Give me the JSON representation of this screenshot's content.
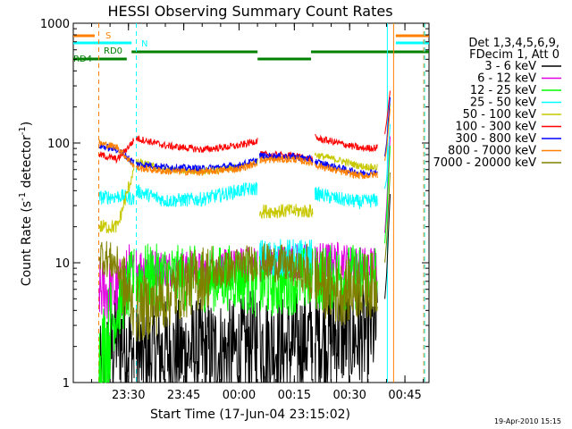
{
  "chart_data": {
    "type": "line",
    "title": "HESSI Observing Summary Count Rates",
    "xlabel": "Start Time (17-Jun-04 23:15:02)",
    "ylabel_main": "Count Rate (s",
    "ylabel_sup": "-1",
    "ylabel_mid": " detector",
    "ylabel_end": ")",
    "yscale": "log",
    "ylim": [
      1,
      1000
    ],
    "x_unit": "minutes after 2004-06-17 23:15:02",
    "xlim": [
      0,
      96.5
    ],
    "xtick_minutes": [
      14.97,
      29.97,
      44.97,
      59.97,
      74.97,
      89.97
    ],
    "xtick_labels": [
      "23:30",
      "23:45",
      "00:00",
      "00:15",
      "00:30",
      "00:45"
    ],
    "ytick_values": [
      1,
      10,
      100,
      1000
    ],
    "ytick_labels": [
      "1",
      "10",
      "100",
      "1000"
    ],
    "legend_header": [
      "Det 1,3,4,5,6,9,",
      "FDecim 1, Att 0"
    ],
    "timestamp": "19-Apr-2010 15:15",
    "segments": [
      [
        7,
        16.5
      ],
      [
        17,
        50
      ],
      [
        50.5,
        65
      ],
      [
        65.5,
        82.5
      ]
    ],
    "series": [
      {
        "name": "3 - 6 keV",
        "color": "#000000",
        "values": [
          [
            7,
            1.0
          ],
          [
            12,
            2.5
          ],
          [
            17,
            1.6
          ],
          [
            25,
            1.8
          ],
          [
            35,
            1.8
          ],
          [
            45,
            1.8
          ],
          [
            50,
            2.3
          ],
          [
            57,
            1.9
          ],
          [
            65,
            2.4
          ],
          [
            72,
            2.5
          ],
          [
            78,
            2.3
          ],
          [
            82,
            2.8
          ],
          [
            84,
            3.0
          ],
          [
            85,
            8.0
          ],
          [
            86,
            40.0
          ]
        ]
      },
      {
        "name": "6 - 12 keV",
        "color": "#e000e0",
        "values": [
          [
            7,
            6.0
          ],
          [
            12,
            5.5
          ],
          [
            17,
            9.5
          ],
          [
            25,
            9.0
          ],
          [
            35,
            8.7
          ],
          [
            45,
            9.2
          ],
          [
            50,
            9.9
          ],
          [
            57,
            10.0
          ],
          [
            65,
            10.3
          ],
          [
            72,
            10.5
          ],
          [
            78,
            9.5
          ],
          [
            84,
            10.0
          ],
          [
            85,
            30.0
          ],
          [
            86,
            120.0
          ]
        ]
      },
      {
        "name": "12 - 25 keV",
        "color": "#00ff00",
        "values": [
          [
            7,
            1.4
          ],
          [
            12,
            4.2
          ],
          [
            17,
            7.8
          ],
          [
            25,
            7.5
          ],
          [
            35,
            7.3
          ],
          [
            45,
            7.6
          ],
          [
            50,
            6.5
          ],
          [
            57,
            6.7
          ],
          [
            65,
            7.5
          ],
          [
            72,
            7.5
          ],
          [
            78,
            7.6
          ],
          [
            84,
            8.0
          ],
          [
            85,
            25.0
          ],
          [
            86,
            100.0
          ]
        ]
      },
      {
        "name": "25 - 50 keV",
        "color": "#00ffff",
        "values": [
          [
            7,
            35.0
          ],
          [
            13,
            36.0
          ],
          [
            16.5,
            34.0
          ],
          [
            17,
            40.0
          ],
          [
            25,
            33.0
          ],
          [
            35,
            34.0
          ],
          [
            45,
            40.0
          ],
          [
            50,
            42.0
          ],
          [
            50.5,
            11.0
          ],
          [
            65,
            11.0
          ],
          [
            65.5,
            38.0
          ],
          [
            72,
            34.0
          ],
          [
            78,
            32.0
          ],
          [
            84,
            34.0
          ],
          [
            85,
            50.0
          ],
          [
            86,
            150.0
          ]
        ]
      },
      {
        "name": "50 - 100 keV",
        "color": "#c8c800",
        "values": [
          [
            7,
            20.0
          ],
          [
            12,
            20.0
          ],
          [
            17,
            70.0
          ],
          [
            25,
            60.0
          ],
          [
            35,
            58.0
          ],
          [
            45,
            62.0
          ],
          [
            50,
            70.0
          ],
          [
            50.5,
            27.0
          ],
          [
            65,
            27.0
          ],
          [
            65.5,
            80.0
          ],
          [
            72,
            72.0
          ],
          [
            78,
            64.0
          ],
          [
            84,
            62.0
          ],
          [
            85,
            100.0
          ],
          [
            86,
            220.0
          ]
        ]
      },
      {
        "name": "100 - 300 keV",
        "color": "#ff0000",
        "values": [
          [
            7,
            80.0
          ],
          [
            12,
            73.0
          ],
          [
            17,
            110.0
          ],
          [
            25,
            95.0
          ],
          [
            35,
            88.0
          ],
          [
            45,
            95.0
          ],
          [
            50,
            105.0
          ],
          [
            50.5,
            80.0
          ],
          [
            60,
            78.0
          ],
          [
            65,
            73.0
          ],
          [
            65.5,
            110.0
          ],
          [
            72,
            100.0
          ],
          [
            78,
            90.0
          ],
          [
            84,
            92.0
          ],
          [
            85,
            150.0
          ],
          [
            86,
            280.0
          ]
        ]
      },
      {
        "name": "300 - 800 keV",
        "color": "#0000ff",
        "values": [
          [
            7,
            95.0
          ],
          [
            12,
            88.0
          ],
          [
            17,
            67.0
          ],
          [
            25,
            63.0
          ],
          [
            35,
            61.0
          ],
          [
            45,
            65.0
          ],
          [
            50,
            72.0
          ],
          [
            50.5,
            78.0
          ],
          [
            60,
            77.0
          ],
          [
            65,
            73.0
          ],
          [
            65.5,
            70.0
          ],
          [
            72,
            62.0
          ],
          [
            78,
            56.0
          ],
          [
            84,
            58.0
          ],
          [
            85,
            100.0
          ],
          [
            86,
            250.0
          ]
        ]
      },
      {
        "name": "800 - 7000 keV",
        "color": "#ff8000",
        "values": [
          [
            7,
            100.0
          ],
          [
            12,
            92.0
          ],
          [
            17,
            62.0
          ],
          [
            25,
            58.0
          ],
          [
            35,
            57.0
          ],
          [
            45,
            61.0
          ],
          [
            50,
            68.0
          ],
          [
            50.5,
            72.0
          ],
          [
            60,
            73.0
          ],
          [
            65,
            68.0
          ],
          [
            65.5,
            66.0
          ],
          [
            72,
            58.0
          ],
          [
            78,
            53.0
          ],
          [
            84,
            55.0
          ],
          [
            85,
            90.0
          ],
          [
            86,
            200.0
          ]
        ]
      },
      {
        "name": "7000 - 20000 keV",
        "color": "#808000",
        "values": [
          [
            7,
            12.0
          ],
          [
            12,
            9.5
          ],
          [
            14,
            6.0
          ],
          [
            17,
            4.0
          ],
          [
            22,
            4.5
          ],
          [
            28,
            6.0
          ],
          [
            35,
            7.5
          ],
          [
            45,
            9.5
          ],
          [
            50,
            10.2
          ],
          [
            57,
            9.8
          ],
          [
            65,
            7.5
          ],
          [
            72,
            5.5
          ],
          [
            78,
            6.5
          ],
          [
            84,
            6.5
          ],
          [
            85,
            15.0
          ],
          [
            86,
            60.0
          ]
        ]
      }
    ],
    "flag_bars": [
      {
        "label": "S",
        "color": "#ff8000",
        "spans": [
          [
            0,
            5.8
          ],
          [
            87.5,
            96.5
          ]
        ]
      },
      {
        "label": "N",
        "color": "#00ffff",
        "spans": [
          [
            0,
            15.8
          ],
          [
            87.5,
            96.5
          ]
        ]
      },
      {
        "label": "RD0",
        "color": "#008000",
        "spans": [
          [
            15.8,
            50
          ],
          [
            64.5,
            96.5
          ]
        ]
      },
      {
        "label": "RD4",
        "color": "#008000",
        "spans": [
          [
            0,
            14.5
          ],
          [
            50,
            64.5
          ]
        ]
      }
    ],
    "vlines": [
      {
        "minute": 6.9,
        "color": "#ff8000",
        "dashed": true
      },
      {
        "minute": 17.1,
        "color": "#00ffff",
        "dashed": true
      },
      {
        "minute": 85.2,
        "color": "#00ffff",
        "dashed": false
      },
      {
        "minute": 86.9,
        "color": "#ff8000",
        "dashed": false
      },
      {
        "minute": 95.1,
        "color": "#ff8000",
        "dashed": true
      },
      {
        "minute": 95.3,
        "color": "#00ffff",
        "dashed": true
      }
    ]
  }
}
